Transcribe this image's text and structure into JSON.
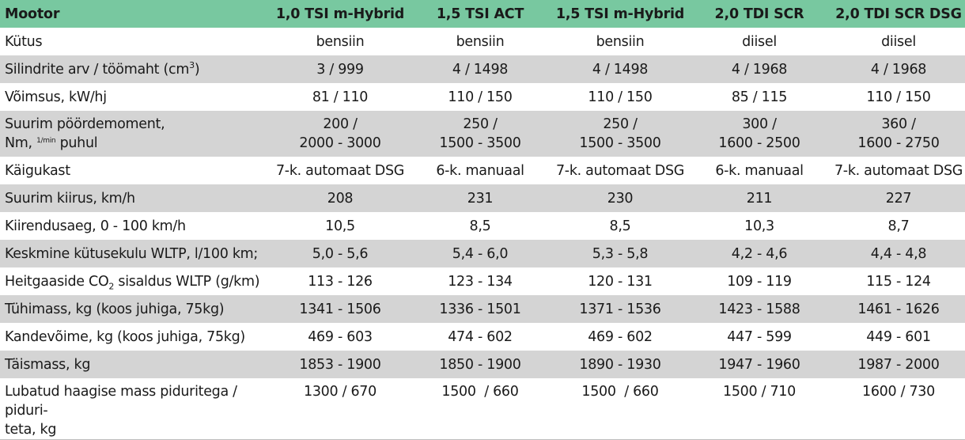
{
  "table": {
    "header": {
      "label": "Mootor",
      "engines": [
        "1,0 TSI m-Hybrid",
        "1,5 TSI ACT",
        "1,5 TSI m-Hybrid",
        "2,0 TDI SCR",
        "2,0 TDI SCR DSG"
      ]
    },
    "rows": [
      {
        "label": "Kütus",
        "values": [
          "bensiin",
          "bensiin",
          "bensiin",
          "diisel",
          "diisel"
        ]
      },
      {
        "label_pre": "Silindrite arv / töömaht (cm",
        "label_sup": "3",
        "label_post": ")",
        "values": [
          "3 / 999",
          "4 / 1498",
          "4 / 1498",
          "4 / 1968",
          "4 / 1968"
        ]
      },
      {
        "label": "Võimsus, kW/hj",
        "values": [
          "81 / 110",
          "110 / 150",
          "110 / 150",
          "85 / 115",
          "110 / 150"
        ]
      },
      {
        "label_line1": "Suurim pöördemoment,",
        "label_line2_pre": "Nm, ",
        "label_line2_sup": "1/min",
        "label_line2_post": " puhul",
        "values_line1": [
          "200 /",
          "250 /",
          "250 /",
          "300 /",
          "360 /"
        ],
        "values_line2": [
          "2000 - 3000",
          "1500 - 3500",
          "1500 - 3500",
          "1600 - 2500",
          "1600 - 2750"
        ]
      },
      {
        "label": "Käigukast",
        "values": [
          "7-k. automaat DSG",
          "6-k. manuaal",
          "7-k. automaat DSG",
          "6-k. manuaal",
          "7-k. automaat DSG"
        ]
      },
      {
        "label": "Suurim kiirus, km/h",
        "values": [
          "208",
          "231",
          "230",
          "211",
          "227"
        ]
      },
      {
        "label": "Kiirendusaeg, 0 - 100 km/h",
        "values": [
          "10,5",
          "8,5",
          "8,5",
          "10,3",
          "8,7"
        ]
      },
      {
        "label": "Keskmine kütusekulu WLTP, l/100 km;",
        "values": [
          "5,0 - 5,6",
          "5,4 - 6,0",
          "5,3 - 5,8",
          "4,2 - 4,6",
          "4,4 - 4,8"
        ]
      },
      {
        "label_pre": "Heitgaaside CO",
        "label_sub": "2",
        "label_post": " sisaldus WLTP (g/km)",
        "values": [
          "113 - 126",
          "123 - 134",
          "120 - 131",
          "109 - 119",
          "115 - 124"
        ]
      },
      {
        "label": "Tühimass, kg (koos juhiga, 75kg)",
        "values": [
          "1341 - 1506",
          "1336 - 1501",
          "1371 - 1536",
          "1423 - 1588",
          "1461 - 1626"
        ]
      },
      {
        "label": "Kandevõime, kg (koos juhiga, 75kg)",
        "values": [
          "469 - 603",
          "474 - 602",
          "469 - 602",
          "447 - 599",
          "449 - 601"
        ]
      },
      {
        "label": "Täismass, kg",
        "values": [
          "1853 - 1900",
          "1850 - 1900",
          "1890 - 1930",
          "1947 - 1960",
          "1987 - 2000"
        ]
      },
      {
        "label_line1": "Lubatud haagise mass piduritega / piduri-",
        "label_line2": "teta, kg",
        "values": [
          "1300 / 670",
          "1500  / 660",
          "1500  / 660",
          "1500 / 710",
          "1600 / 730"
        ]
      }
    ]
  }
}
